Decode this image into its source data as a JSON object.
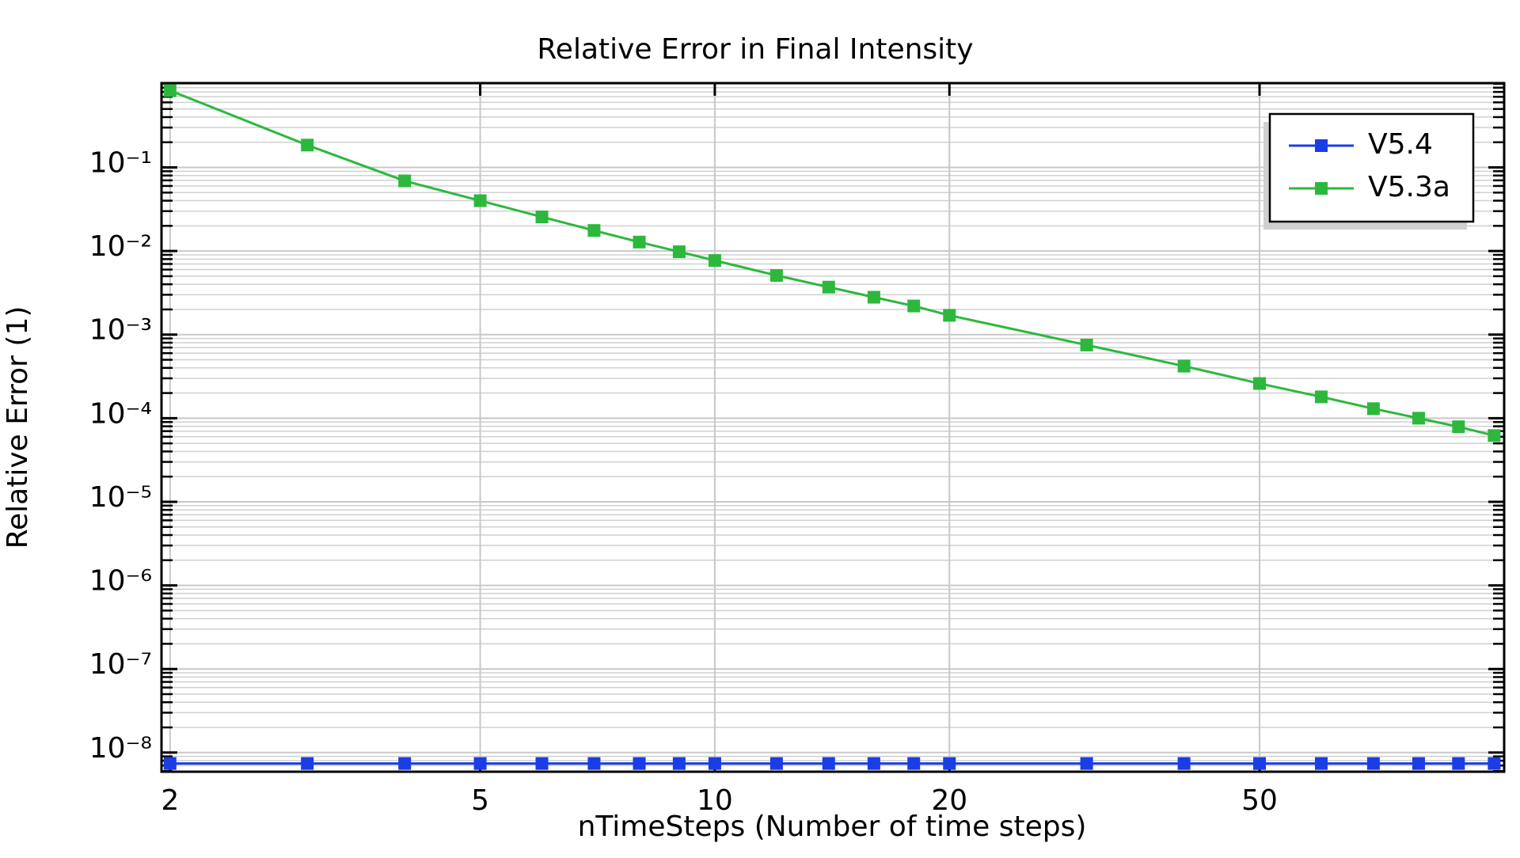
{
  "chart_data": {
    "type": "line",
    "title": "Relative Error in Final Intensity",
    "x_label": "nTimeSteps (Number of time steps)",
    "y_label": "Relative Error (1)",
    "x": [
      2,
      3,
      4,
      5,
      6,
      7,
      8,
      9,
      10,
      12,
      14,
      16,
      18,
      20,
      30,
      40,
      50,
      60,
      70,
      80,
      90,
      100
    ],
    "series": [
      {
        "name": "V5.4",
        "color": "#1a3de6",
        "values": [
          7.4e-09,
          7.4e-09,
          7.4e-09,
          7.4e-09,
          7.4e-09,
          7.4e-09,
          7.4e-09,
          7.4e-09,
          7.4e-09,
          7.4e-09,
          7.4e-09,
          7.4e-09,
          7.4e-09,
          7.4e-09,
          7.4e-09,
          7.4e-09,
          7.4e-09,
          7.4e-09,
          7.4e-09,
          7.4e-09,
          7.4e-09,
          7.4e-09
        ]
      },
      {
        "name": "V5.3a",
        "color": "#2db83d",
        "values": [
          0.83,
          0.185,
          0.069,
          0.04,
          0.0256,
          0.0176,
          0.0128,
          0.0098,
          0.0077,
          0.0051,
          0.0037,
          0.0028,
          0.0022,
          0.0017,
          0.00075,
          0.00042,
          0.00026,
          0.00018,
          0.00013,
          0.0001,
          7.9e-05,
          6.2e-05
        ]
      }
    ],
    "xscale": "log",
    "yscale": "log",
    "xlim": [
      1.95,
      103
    ],
    "ylim": [
      5.9e-09,
      1.02
    ],
    "xticks": [
      2,
      5,
      10,
      20,
      50
    ],
    "yticks": [
      {
        "value": 1e-08,
        "label": "10⁻⁸"
      },
      {
        "value": 1e-07,
        "label": "10⁻⁷"
      },
      {
        "value": 1e-06,
        "label": "10⁻⁶"
      },
      {
        "value": 1e-05,
        "label": "10⁻⁵"
      },
      {
        "value": 0.0001,
        "label": "10⁻⁴"
      },
      {
        "value": 0.001,
        "label": "10⁻³"
      },
      {
        "value": 0.01,
        "label": "10⁻²"
      },
      {
        "value": 0.1,
        "label": "10⁻¹"
      }
    ],
    "yminorticks": [
      6e-09,
      7e-09,
      8e-09,
      9e-09,
      2e-08,
      3e-08,
      4e-08,
      5e-08,
      6e-08,
      7e-08,
      8e-08,
      9e-08,
      2e-07,
      3e-07,
      4e-07,
      5e-07,
      6e-07,
      7e-07,
      8e-07,
      9e-07,
      2e-06,
      3e-06,
      4e-06,
      5e-06,
      6e-06,
      7e-06,
      8e-06,
      9e-06,
      2e-05,
      3e-05,
      4e-05,
      5e-05,
      6e-05,
      7e-05,
      8e-05,
      9e-05,
      0.0002,
      0.0003,
      0.0004,
      0.0005,
      0.0006,
      0.0007,
      0.0008,
      0.0009,
      0.002,
      0.003,
      0.004,
      0.005,
      0.006,
      0.007,
      0.008,
      0.009,
      0.02,
      0.03,
      0.04,
      0.05,
      0.06,
      0.07,
      0.08,
      0.09,
      0.2,
      0.3,
      0.4,
      0.5,
      0.6,
      0.7,
      0.8,
      0.9,
      1
    ],
    "grid": true,
    "legend": "upper right"
  }
}
